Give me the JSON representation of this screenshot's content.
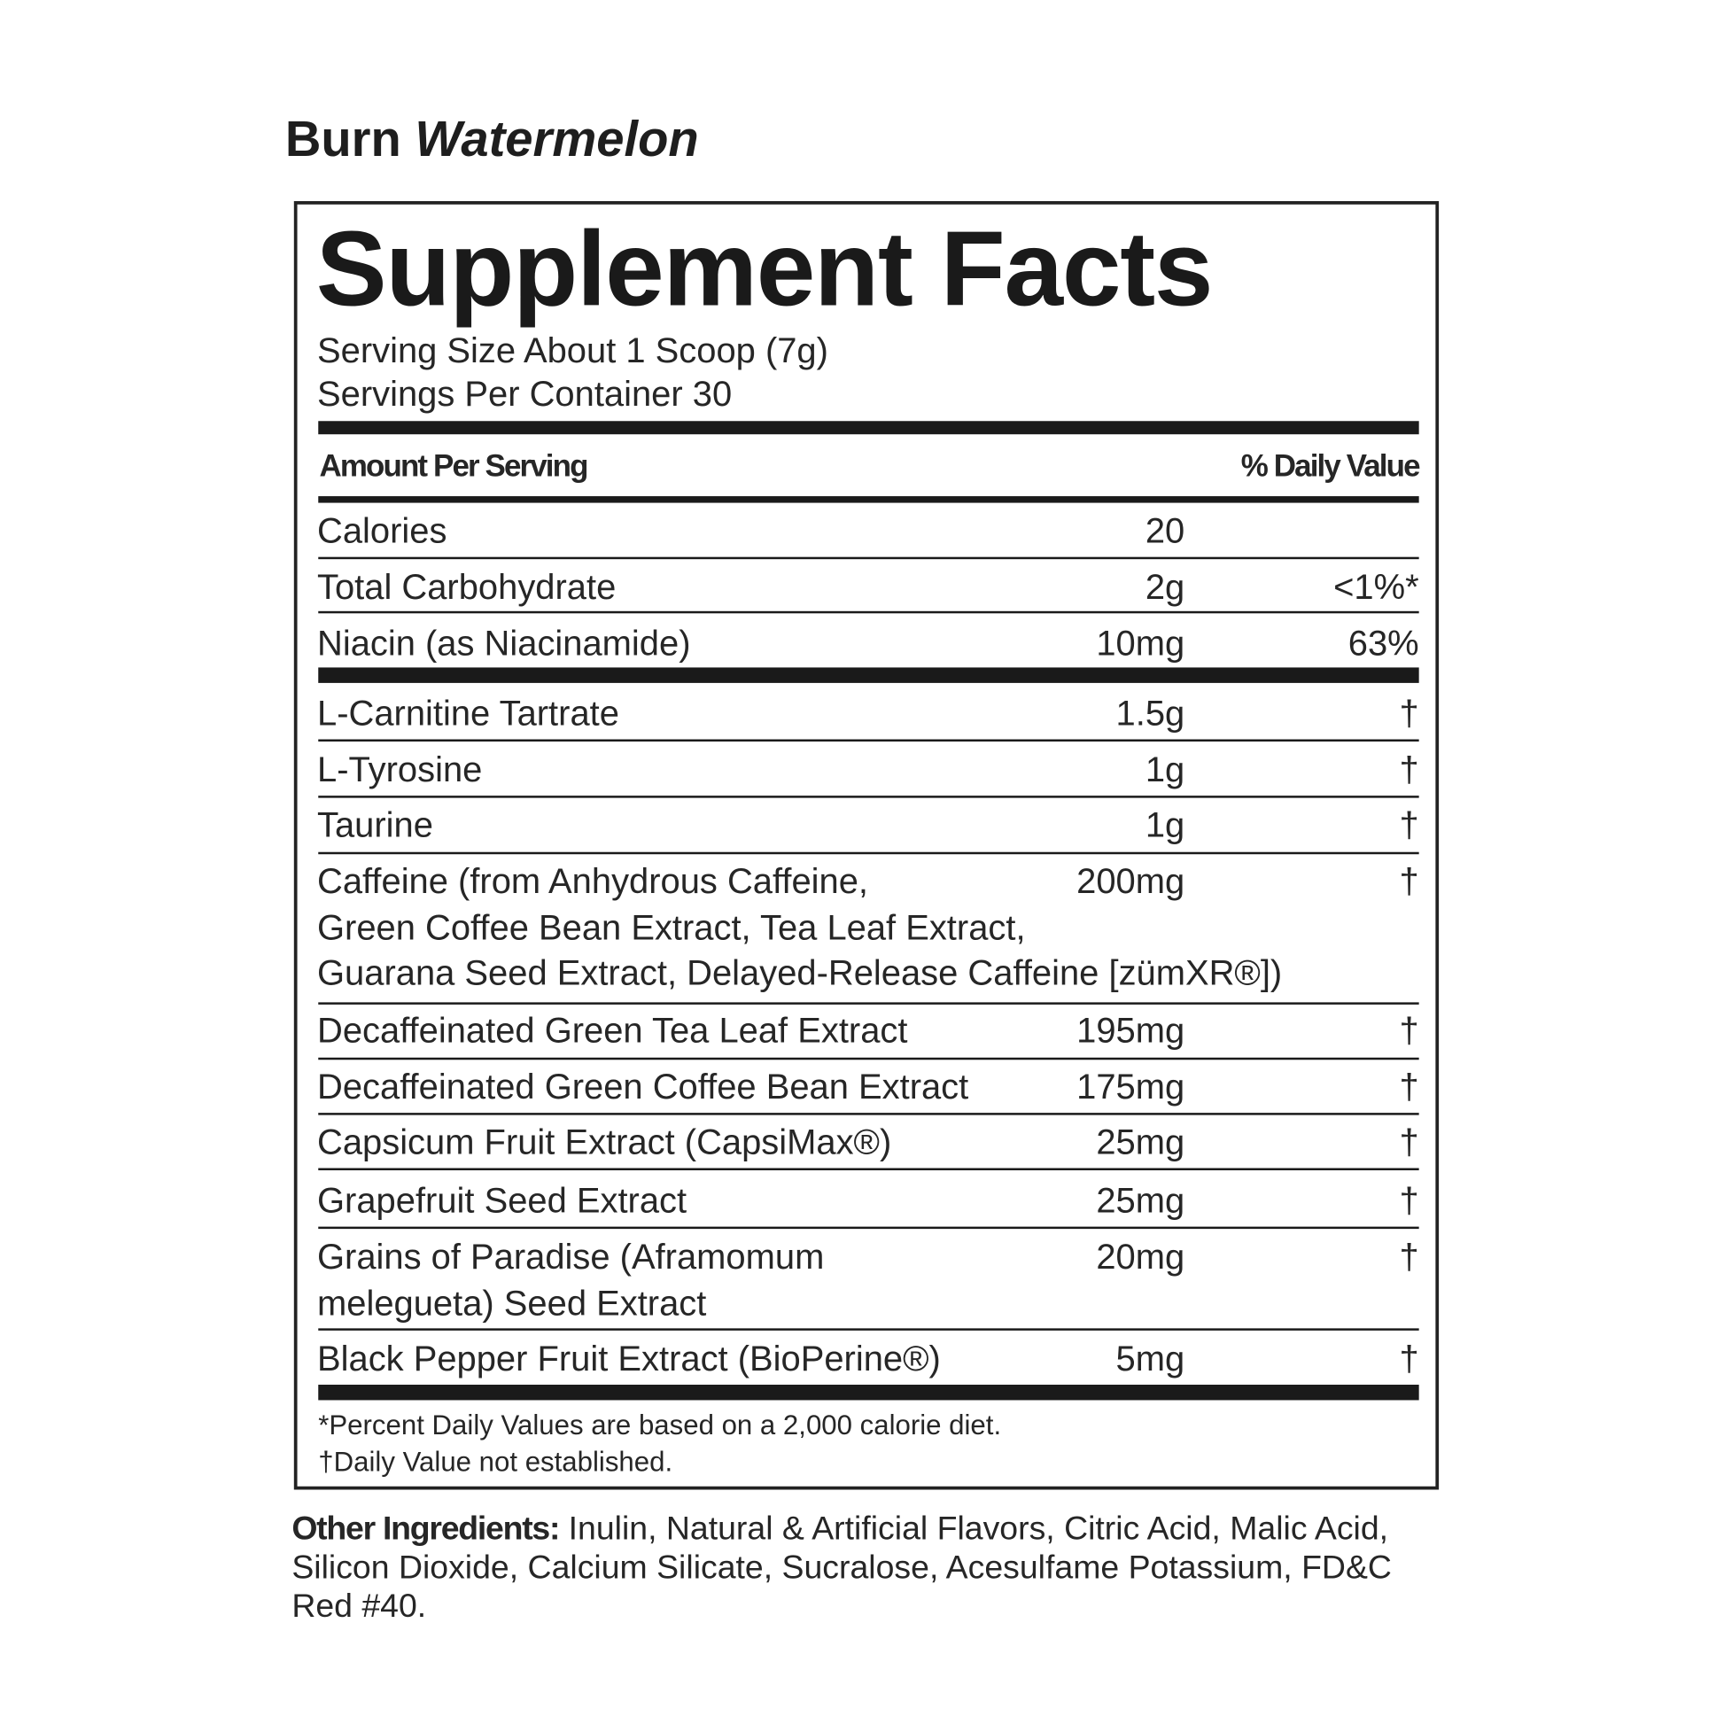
{
  "product": {
    "name": "Burn",
    "flavor": "Watermelon"
  },
  "panel": {
    "title": "Supplement Facts",
    "serving_size": "Serving Size About 1 Scoop (7g)",
    "servings_per_container": "Servings Per Container 30",
    "header_amount": "Amount Per Serving",
    "header_dv": "% Daily Value",
    "rows": [
      {
        "name": [
          "Calories"
        ],
        "amount": "20",
        "dv": ""
      },
      {
        "name": [
          "Total Carbohydrate"
        ],
        "amount": "2g",
        "dv": "<1%*"
      },
      {
        "name": [
          "Niacin (as Niacinamide)"
        ],
        "amount": "10mg",
        "dv": "63%"
      },
      {
        "name": [
          "L-Carnitine Tartrate"
        ],
        "amount": "1.5g",
        "dv": "†"
      },
      {
        "name": [
          "L-Tyrosine"
        ],
        "amount": "1g",
        "dv": "†"
      },
      {
        "name": [
          "Taurine"
        ],
        "amount": "1g",
        "dv": "†"
      },
      {
        "name": [
          "Caffeine (from Anhydrous Caffeine,",
          "Green Coffee Bean Extract, Tea Leaf Extract,",
          "Guarana Seed Extract, Delayed-Release Caffeine [zümXR®])"
        ],
        "amount": "200mg",
        "dv": "†"
      },
      {
        "name": [
          "Decaffeinated Green Tea Leaf Extract"
        ],
        "amount": "195mg",
        "dv": "†"
      },
      {
        "name": [
          "Decaffeinated Green Coffee Bean Extract"
        ],
        "amount": "175mg",
        "dv": "†"
      },
      {
        "name": [
          "Capsicum Fruit Extract (CapsiMax®)"
        ],
        "amount": "25mg",
        "dv": "†"
      },
      {
        "name": [
          "Grapefruit Seed Extract"
        ],
        "amount": "25mg",
        "dv": "†"
      },
      {
        "name": [
          "Grains of Paradise (Aframomum",
          "melegueta) Seed Extract"
        ],
        "amount": "20mg",
        "dv": "†"
      },
      {
        "name": [
          "Black Pepper Fruit Extract (BioPerine®)"
        ],
        "amount": "5mg",
        "dv": "†"
      }
    ],
    "footnotes": [
      "*Percent Daily Values are based on a 2,000 calorie diet.",
      "†Daily Value not established."
    ]
  },
  "other_ingredients": {
    "label": "Other Ingredients:",
    "text": " Inulin, Natural & Artificial Flavors, Citric Acid, Malic Acid, Silicon Dioxide, Calcium Silicate, Sucralose, Acesulfame Potassium, FD&C Red #40."
  }
}
